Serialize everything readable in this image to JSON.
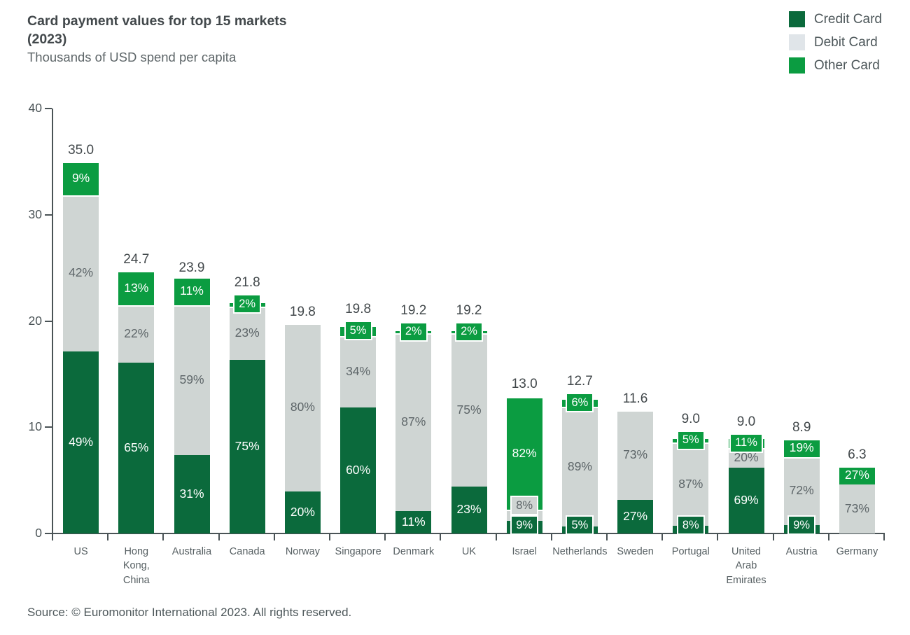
{
  "header": {
    "title": "Card payment values for top 15 markets (2023)",
    "subtitle": "Thousands of USD spend per capita"
  },
  "source": "Source: © Euromonitor International 2023. All rights reserved.",
  "chart_data": {
    "type": "bar",
    "stacked": true,
    "title": "Card payment values for top 15 markets (2023)",
    "subtitle": "Thousands of USD spend per capita",
    "xlabel": "",
    "ylabel": "Thousands of USD spend per capita",
    "ylim": [
      0,
      40
    ],
    "yticks": [
      0,
      10,
      20,
      30,
      40
    ],
    "grid": false,
    "legend_position": "top-right",
    "colors": {
      "credit": "#0b6a3c",
      "debit": "#cfd5d3",
      "debit_legend": "#e0e5e9",
      "other": "#0b9c41",
      "axis": "#4a5356",
      "gray_text": "#5d6568",
      "white_text": "#ffffff"
    },
    "series": [
      {
        "key": "credit",
        "name": "Credit Card"
      },
      {
        "key": "debit",
        "name": "Debit Card"
      },
      {
        "key": "other",
        "name": "Other Card"
      }
    ],
    "bars": [
      {
        "label": "US",
        "lines": [
          "US"
        ],
        "total": 35.0,
        "total_label": "35.0",
        "pct": {
          "credit": 49,
          "debit": 42,
          "other": 9
        }
      },
      {
        "label": "Hong Kong, China",
        "lines": [
          "Hong",
          "Kong,",
          "China"
        ],
        "total": 24.7,
        "total_label": "24.7",
        "pct": {
          "credit": 65,
          "debit": 22,
          "other": 13
        }
      },
      {
        "label": "Australia",
        "lines": [
          "Australia"
        ],
        "total": 23.9,
        "total_label": "23.9",
        "pct": {
          "credit": 31,
          "debit": 59,
          "other": 11
        }
      },
      {
        "label": "Canada",
        "lines": [
          "Canada"
        ],
        "total": 21.8,
        "total_label": "21.8",
        "pct": {
          "credit": 75,
          "debit": 23,
          "other": 2
        }
      },
      {
        "label": "Norway",
        "lines": [
          "Norway"
        ],
        "total": 19.8,
        "total_label": "19.8",
        "pct": {
          "credit": 20,
          "debit": 80,
          "other": 0
        }
      },
      {
        "label": "Singapore",
        "lines": [
          "Singapore"
        ],
        "total": 19.8,
        "total_label": "19.8",
        "pct": {
          "credit": 60,
          "debit": 34,
          "other": 5
        }
      },
      {
        "label": "Denmark",
        "lines": [
          "Denmark"
        ],
        "total": 19.2,
        "total_label": "19.2",
        "pct": {
          "credit": 11,
          "debit": 87,
          "other": 2
        }
      },
      {
        "label": "UK",
        "lines": [
          "UK"
        ],
        "total": 19.2,
        "total_label": "19.2",
        "pct": {
          "credit": 23,
          "debit": 75,
          "other": 2
        }
      },
      {
        "label": "Israel",
        "lines": [
          "Israel"
        ],
        "total": 13.0,
        "total_label": "13.0",
        "pct": {
          "credit": 9,
          "debit": 8,
          "other": 82
        }
      },
      {
        "label": "Netherlands",
        "lines": [
          "Netherlands"
        ],
        "total": 12.7,
        "total_label": "12.7",
        "pct": {
          "credit": 5,
          "debit": 89,
          "other": 6
        }
      },
      {
        "label": "Sweden",
        "lines": [
          "Sweden"
        ],
        "total": 11.6,
        "total_label": "11.6",
        "pct": {
          "credit": 27,
          "debit": 73,
          "other": 0
        }
      },
      {
        "label": "Portugal",
        "lines": [
          "Portugal"
        ],
        "total": 9.0,
        "total_label": "9.0",
        "pct": {
          "credit": 8,
          "debit": 87,
          "other": 5
        }
      },
      {
        "label": "United Arab Emirates",
        "lines": [
          "United",
          "Arab",
          "Emirates"
        ],
        "total": 9.0,
        "total_label": "9.0",
        "pct": {
          "credit": 69,
          "debit": 20,
          "other": 11
        }
      },
      {
        "label": "Austria",
        "lines": [
          "Austria"
        ],
        "total": 8.9,
        "total_label": "8.9",
        "pct": {
          "credit": 9,
          "debit": 72,
          "other": 19
        }
      },
      {
        "label": "Germany",
        "lines": [
          "Germany"
        ],
        "total": 6.3,
        "total_label": "6.3",
        "pct": {
          "credit": 0,
          "debit": 73,
          "other": 27
        }
      }
    ]
  }
}
